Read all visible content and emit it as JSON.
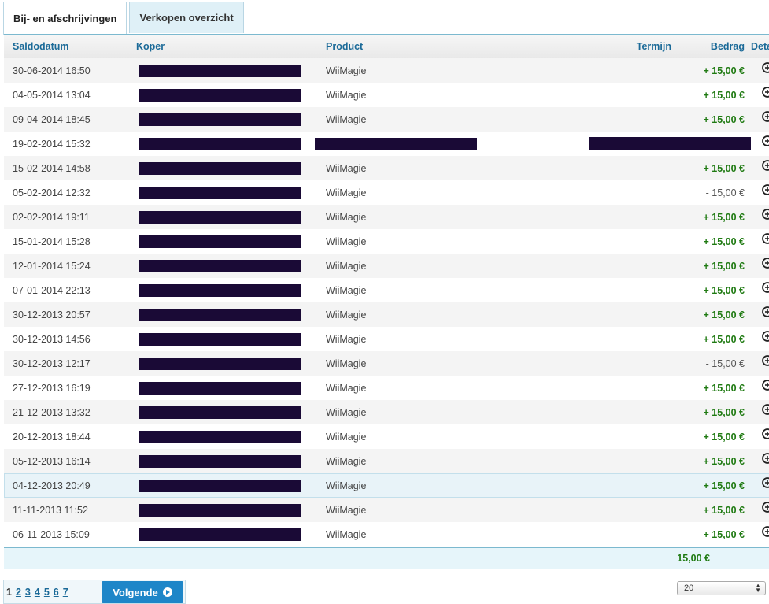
{
  "tabs": [
    {
      "label": "Bij- en afschrijvingen",
      "active": true
    },
    {
      "label": "Verkopen overzicht",
      "active": false
    }
  ],
  "columns": {
    "date": "Saldodatum",
    "buyer": "Koper",
    "product": "Product",
    "term": "Termijn",
    "amount": "Bedrag",
    "details": "Details"
  },
  "rows": [
    {
      "date": "30-06-2014 16:50",
      "product": "WiiMagie",
      "amount": "+ 15,00 €",
      "sign": "pos"
    },
    {
      "date": "04-05-2014 13:04",
      "product": "WiiMagie",
      "amount": "+ 15,00 €",
      "sign": "pos"
    },
    {
      "date": "09-04-2014 18:45",
      "product": "WiiMagie",
      "amount": "+ 15,00 €",
      "sign": "pos"
    },
    {
      "date": "19-02-2014 15:32",
      "product": "",
      "amount": "",
      "sign": "redacted"
    },
    {
      "date": "15-02-2014 14:58",
      "product": "WiiMagie",
      "amount": "+ 15,00 €",
      "sign": "pos"
    },
    {
      "date": "05-02-2014 12:32",
      "product": "WiiMagie",
      "amount": "- 15,00 €",
      "sign": "neg"
    },
    {
      "date": "02-02-2014 19:11",
      "product": "WiiMagie",
      "amount": "+ 15,00 €",
      "sign": "pos"
    },
    {
      "date": "15-01-2014 15:28",
      "product": "WiiMagie",
      "amount": "+ 15,00 €",
      "sign": "pos"
    },
    {
      "date": "12-01-2014 15:24",
      "product": "WiiMagie",
      "amount": "+ 15,00 €",
      "sign": "pos"
    },
    {
      "date": "07-01-2014 22:13",
      "product": "WiiMagie",
      "amount": "+ 15,00 €",
      "sign": "pos"
    },
    {
      "date": "30-12-2013 20:57",
      "product": "WiiMagie",
      "amount": "+ 15,00 €",
      "sign": "pos"
    },
    {
      "date": "30-12-2013 14:56",
      "product": "WiiMagie",
      "amount": "+ 15,00 €",
      "sign": "pos"
    },
    {
      "date": "30-12-2013 12:17",
      "product": "WiiMagie",
      "amount": "- 15,00 €",
      "sign": "neg"
    },
    {
      "date": "27-12-2013 16:19",
      "product": "WiiMagie",
      "amount": "+ 15,00 €",
      "sign": "pos"
    },
    {
      "date": "21-12-2013 13:32",
      "product": "WiiMagie",
      "amount": "+ 15,00 €",
      "sign": "pos"
    },
    {
      "date": "20-12-2013 18:44",
      "product": "WiiMagie",
      "amount": "+ 15,00 €",
      "sign": "pos"
    },
    {
      "date": "05-12-2013 16:14",
      "product": "WiiMagie",
      "amount": "+ 15,00 €",
      "sign": "pos"
    },
    {
      "date": "04-12-2013 20:49",
      "product": "WiiMagie",
      "amount": "+ 15,00 €",
      "sign": "pos",
      "selected": true
    },
    {
      "date": "11-11-2013 11:52",
      "product": "WiiMagie",
      "amount": "+ 15,00 €",
      "sign": "pos"
    },
    {
      "date": "06-11-2013 15:09",
      "product": "WiiMagie",
      "amount": "+ 15,00 €",
      "sign": "pos"
    }
  ],
  "details_icon": "magnifier-plus-icon",
  "total": "15,00 €",
  "pagination": {
    "pages": [
      "1",
      "2",
      "3",
      "4",
      "5",
      "6",
      "7"
    ],
    "current": "1",
    "next_label": "Volgende"
  },
  "page_size": {
    "selected": "20"
  },
  "colors": {
    "accent": "#1b6a98",
    "positive": "#1f7a12",
    "button": "#1e86c8",
    "redaction": "#1a0a36"
  }
}
